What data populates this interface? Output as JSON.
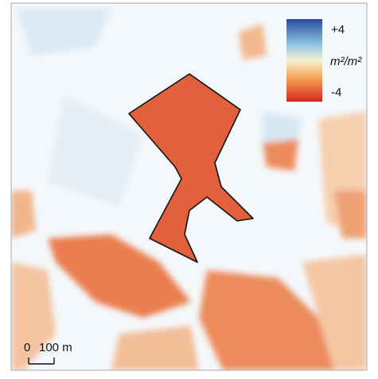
{
  "legend": {
    "ticks": [
      {
        "value": 4,
        "label": "+4"
      },
      {
        "value": -4,
        "label": "-4"
      }
    ],
    "unit": "m²/m²"
  },
  "scale_bar": {
    "ticks": [
      0,
      {
        "value": 100,
        "label": "100 m"
      }
    ]
  }
}
